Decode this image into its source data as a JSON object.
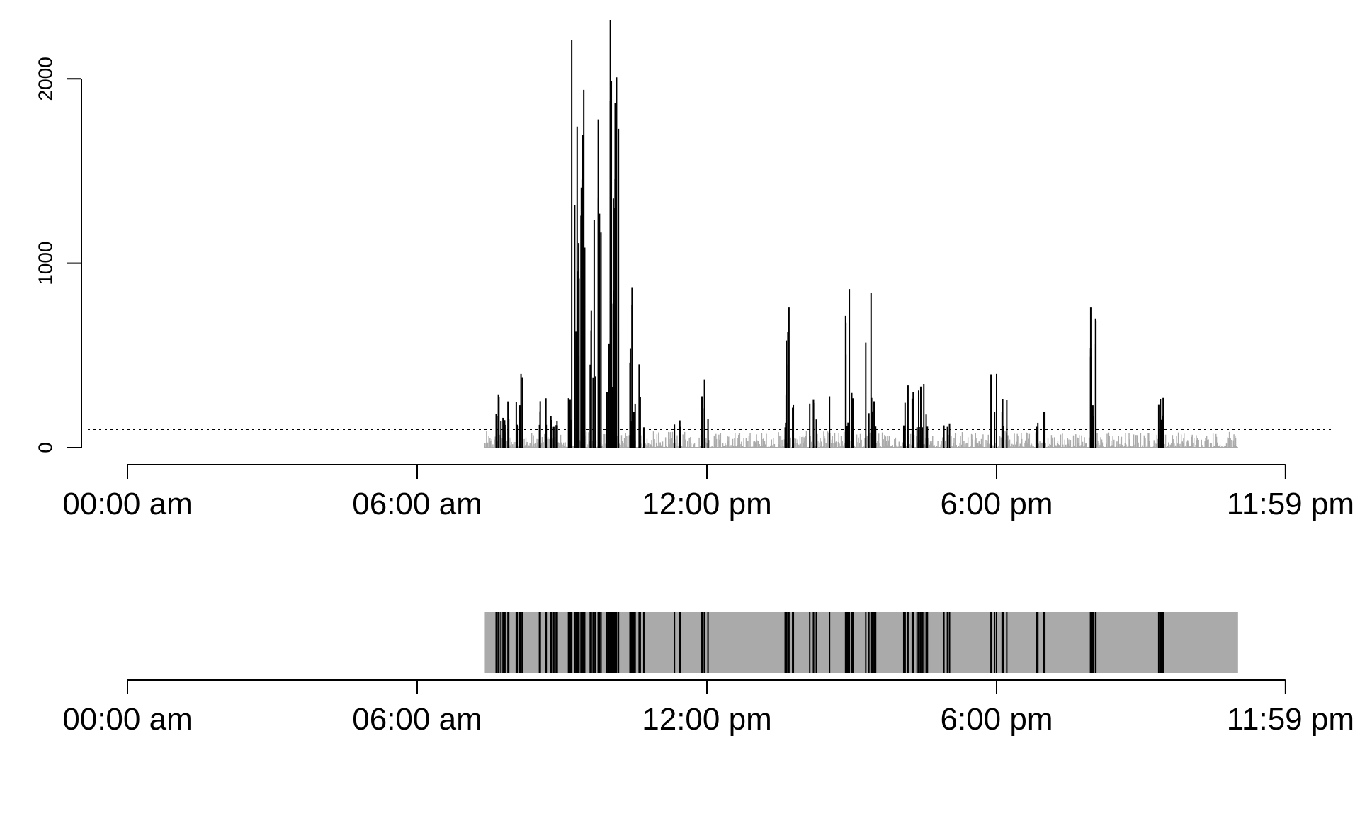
{
  "chart_data": [
    {
      "type": "bar",
      "title": "",
      "xlabel": "",
      "ylabel": "",
      "x_unit": "hours since midnight",
      "xlim": [
        0,
        24
      ],
      "ylim": [
        0,
        2320
      ],
      "y_ticks": [
        0,
        1000,
        2000
      ],
      "y_tick_labels": [
        "0",
        "1000",
        "2000"
      ],
      "x_ticks": [
        0,
        6,
        12,
        18,
        23.983
      ],
      "x_tick_labels": [
        "00:00 am",
        "06:00 am",
        "12:00 pm",
        "6:00 pm",
        "11:59 pm"
      ],
      "threshold": {
        "value": 100,
        "style": "dotted"
      },
      "colors": {
        "above_threshold": "#000000",
        "below_threshold": "#aaaaaa"
      },
      "grid": false,
      "active_bursts": [
        {
          "center": 7.75,
          "spread": 0.15,
          "count": 14,
          "min": 120,
          "max": 290
        },
        {
          "center": 8.15,
          "spread": 0.12,
          "count": 6,
          "min": 110,
          "max": 400
        },
        {
          "center": 8.7,
          "spread": 0.2,
          "count": 12,
          "min": 110,
          "max": 300
        },
        {
          "center": 9.35,
          "spread": 0.12,
          "count": 24,
          "min": 500,
          "max": 1950
        },
        {
          "center": 9.15,
          "spread": 0.06,
          "count": 3,
          "min": 150,
          "max": 300
        },
        {
          "center": 9.7,
          "spread": 0.12,
          "count": 10,
          "min": 200,
          "max": 1800
        },
        {
          "center": 10.05,
          "spread": 0.12,
          "count": 18,
          "min": 300,
          "max": 2300
        },
        {
          "center": 10.5,
          "spread": 0.2,
          "count": 10,
          "min": 110,
          "max": 870
        },
        {
          "center": 11.4,
          "spread": 0.15,
          "count": 3,
          "min": 110,
          "max": 280
        },
        {
          "center": 11.95,
          "spread": 0.08,
          "count": 3,
          "min": 110,
          "max": 370
        },
        {
          "center": 13.7,
          "spread": 0.1,
          "count": 10,
          "min": 110,
          "max": 760
        },
        {
          "center": 14.3,
          "spread": 0.25,
          "count": 5,
          "min": 110,
          "max": 320
        },
        {
          "center": 14.95,
          "spread": 0.1,
          "count": 8,
          "min": 110,
          "max": 860
        },
        {
          "center": 15.4,
          "spread": 0.12,
          "count": 6,
          "min": 110,
          "max": 840
        },
        {
          "center": 16.3,
          "spread": 0.3,
          "count": 14,
          "min": 110,
          "max": 350
        },
        {
          "center": 16.95,
          "spread": 0.1,
          "count": 3,
          "min": 110,
          "max": 190
        },
        {
          "center": 18.05,
          "spread": 0.25,
          "count": 6,
          "min": 110,
          "max": 400
        },
        {
          "center": 18.9,
          "spread": 0.15,
          "count": 4,
          "min": 110,
          "max": 200
        },
        {
          "center": 20.0,
          "spread": 0.06,
          "count": 9,
          "min": 150,
          "max": 760
        },
        {
          "center": 21.4,
          "spread": 0.06,
          "count": 5,
          "min": 150,
          "max": 270
        }
      ],
      "anchor_peaks": [
        {
          "x": 9.2,
          "y": 2210
        },
        {
          "x": 10.0,
          "y": 2320
        },
        {
          "x": 9.75,
          "y": 1780
        },
        {
          "x": 9.45,
          "y": 1940
        },
        {
          "x": 10.1,
          "y": 1870
        },
        {
          "x": 10.45,
          "y": 870
        },
        {
          "x": 13.7,
          "y": 760
        },
        {
          "x": 14.95,
          "y": 860
        },
        {
          "x": 15.4,
          "y": 840
        },
        {
          "x": 19.95,
          "y": 760
        },
        {
          "x": 20.05,
          "y": 700
        },
        {
          "x": 18.0,
          "y": 400
        },
        {
          "x": 8.15,
          "y": 400
        },
        {
          "x": 11.95,
          "y": 370
        },
        {
          "x": 21.45,
          "y": 270
        }
      ],
      "inactive_range": [
        7.4,
        23.0
      ],
      "inactive_max": 90
    },
    {
      "type": "heatmap",
      "title": "",
      "xlabel": "",
      "ylabel": "",
      "x_unit": "hours since midnight",
      "xlim": [
        0,
        24
      ],
      "record_range": [
        7.4,
        23.0
      ],
      "x_ticks": [
        0,
        6,
        12,
        18,
        23.983
      ],
      "x_tick_labels": [
        "00:00 am",
        "06:00 am",
        "12:00 pm",
        "6:00 pm",
        "11:59 pm"
      ],
      "colors": {
        "active": "#000000",
        "inactive": "#aaaaaa"
      },
      "legend": "none"
    }
  ]
}
